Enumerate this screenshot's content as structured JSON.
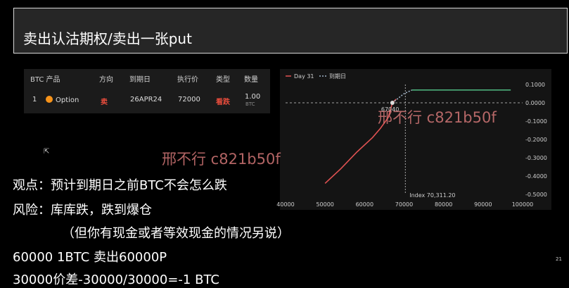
{
  "slide": {
    "title": "卖出认沽期权/卖出一张put",
    "page_number": "21",
    "paragraphs": [
      "观点：预计到期日之前BTC不会怎么跌",
      "风险：库库跌，跌到爆仓",
      "（但你有现金或者等效现金的情况另说）",
      "60000 1BTC 卖出60000P",
      "30000价差-30000/30000=-1 BTC"
    ],
    "watermarks": [
      "邢不行 c821b50f",
      "邢不行 c821b50f"
    ]
  },
  "table": {
    "headers": [
      "BTC 产品",
      "方向",
      "到期日",
      "执行价",
      "类型",
      "数量"
    ],
    "row": {
      "index": "1",
      "product": "Option",
      "direction": "卖",
      "expiry": "26APR24",
      "strike": "72000",
      "type": "看跌",
      "qty": "1.00",
      "qty_unit": "BTC"
    },
    "colors": {
      "direction": "#e74c3c",
      "type": "#e74c3c",
      "coin": "#f7931a"
    }
  },
  "chart_data": {
    "type": "line",
    "legend": [
      "Day 31",
      "到期日"
    ],
    "legend_position": "top-left",
    "x_ticks": [
      "40000",
      "50000",
      "60000",
      "70000",
      "80000",
      "90000",
      "100000"
    ],
    "y_ticks": [
      "0.1000",
      "0.0000",
      "-0.1000",
      "-0.2000",
      "-0.3000",
      "-0.4000",
      "-0.5000"
    ],
    "xlim": [
      40000,
      100000
    ],
    "ylim": [
      -0.5,
      0.1
    ],
    "annotation_point_label": "67040",
    "index_label": "Index 70,311.20",
    "series": [
      {
        "name": "Day 31",
        "color": "#e05252",
        "style": "solid",
        "x": [
          50000,
          54000,
          58000,
          62000,
          64000,
          66000,
          67040,
          68000
        ],
        "y": [
          -0.44,
          -0.36,
          -0.27,
          -0.19,
          -0.14,
          -0.08,
          0.0,
          0.02
        ]
      },
      {
        "name": "到期日",
        "color": "#a0b4c8",
        "style": "dotted",
        "x": [
          67040,
          70000,
          72000
        ],
        "y": [
          0.0,
          0.05,
          0.07
        ]
      },
      {
        "name": "",
        "color": "#4caf7a",
        "style": "solid",
        "x": [
          72000,
          97000
        ],
        "y": [
          0.07,
          0.07
        ]
      }
    ],
    "zero_line_color": "#cfcfcf",
    "index_line_color": "#cfcfcf"
  }
}
